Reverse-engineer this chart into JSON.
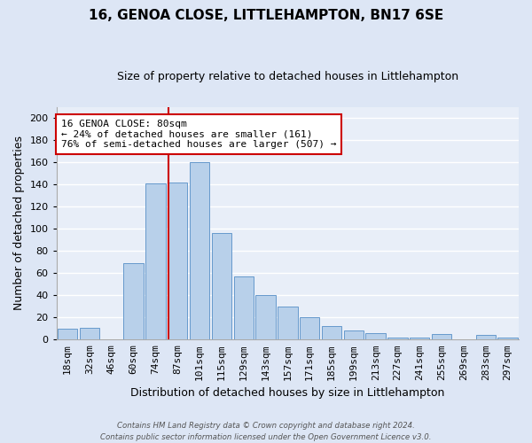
{
  "title": "16, GENOA CLOSE, LITTLEHAMPTON, BN17 6SE",
  "subtitle": "Size of property relative to detached houses in Littlehampton",
  "xlabel": "Distribution of detached houses by size in Littlehampton",
  "ylabel": "Number of detached properties",
  "categories": [
    "18sqm",
    "32sqm",
    "46sqm",
    "60sqm",
    "74sqm",
    "87sqm",
    "101sqm",
    "115sqm",
    "129sqm",
    "143sqm",
    "157sqm",
    "171sqm",
    "185sqm",
    "199sqm",
    "213sqm",
    "227sqm",
    "241sqm",
    "255sqm",
    "269sqm",
    "283sqm",
    "297sqm"
  ],
  "values": [
    10,
    11,
    0,
    69,
    141,
    142,
    160,
    96,
    57,
    40,
    30,
    20,
    12,
    8,
    6,
    2,
    2,
    5,
    0,
    4,
    2
  ],
  "bar_color": "#b8d0ea",
  "bar_edge_color": "#6699cc",
  "background_color": "#e8eef8",
  "grid_color": "#ffffff",
  "vline_x_index": 4.57,
  "vline_color": "#cc0000",
  "annotation_line1": "16 GENOA CLOSE: 80sqm",
  "annotation_line2": "← 24% of detached houses are smaller (161)",
  "annotation_line3": "76% of semi-detached houses are larger (507) →",
  "annotation_box_color": "#ffffff",
  "annotation_box_edge_color": "#cc0000",
  "footer_line1": "Contains HM Land Registry data © Crown copyright and database right 2024.",
  "footer_line2": "Contains public sector information licensed under the Open Government Licence v3.0.",
  "ylim": [
    0,
    210
  ],
  "yticks": [
    0,
    20,
    40,
    60,
    80,
    100,
    120,
    140,
    160,
    180,
    200
  ],
  "title_fontsize": 11,
  "subtitle_fontsize": 9,
  "ylabel_fontsize": 9,
  "xlabel_fontsize": 9,
  "tick_fontsize": 8,
  "annot_fontsize": 8
}
